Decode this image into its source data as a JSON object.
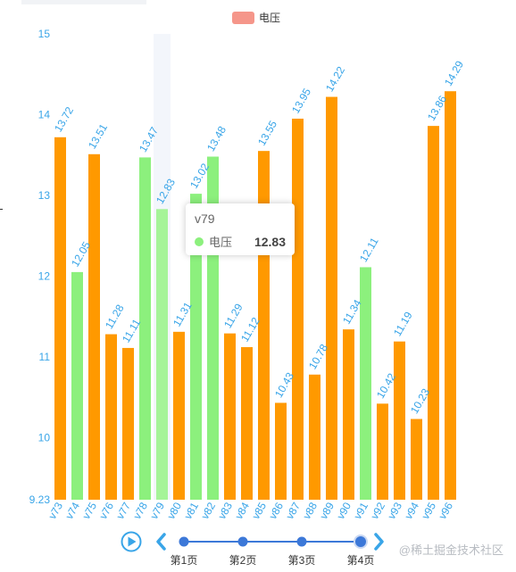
{
  "chart_data": {
    "type": "bar",
    "title": "",
    "legend": {
      "position": "top-center",
      "entries": [
        {
          "name": "电压",
          "color": "#f5968a"
        }
      ]
    },
    "yaxis": {
      "min": 9.23,
      "max": 15,
      "ticks": [
        "15",
        "14",
        "13",
        "12",
        "11",
        "10",
        "9.23"
      ]
    },
    "categories": [
      "v73",
      "v74",
      "v75",
      "v76",
      "v77",
      "v78",
      "v79",
      "v80",
      "v81",
      "v82",
      "v83",
      "v84",
      "v85",
      "v86",
      "v87",
      "v88",
      "v89",
      "v90",
      "v91",
      "v92",
      "v93",
      "v94",
      "v95",
      "v96"
    ],
    "series": [
      {
        "name": "电压",
        "values": [
          13.72,
          12.05,
          13.51,
          11.28,
          11.11,
          13.47,
          12.83,
          11.31,
          13.02,
          13.48,
          11.29,
          11.12,
          13.55,
          10.43,
          13.95,
          10.78,
          14.22,
          11.34,
          12.11,
          10.42,
          11.19,
          10.23,
          13.86,
          14.29
        ],
        "labels": [
          "13.72",
          "12.05",
          "13.51",
          "11.28",
          "11.11",
          "13.47",
          "12.83",
          "11.31",
          "13.02",
          "13.48",
          "11.29",
          "11.12",
          "13.55",
          "10.43",
          "13.95",
          "10.78",
          "14.22",
          "11.34",
          "12.11",
          "10.42",
          "11.19",
          "10.23",
          "13.86",
          "14.29"
        ],
        "colors": [
          "#ff9900",
          "#8cf07d",
          "#ff9900",
          "#ff9900",
          "#ff9900",
          "#8cf07d",
          "#a5f498",
          "#ff9900",
          "#8cf07d",
          "#8cf07d",
          "#ff9900",
          "#ff9900",
          "#ff9900",
          "#ff9900",
          "#ff9900",
          "#ff9900",
          "#ff9900",
          "#ff9900",
          "#8cf07d",
          "#ff9900",
          "#ff9900",
          "#ff9900",
          "#ff9900",
          "#ff9900"
        ]
      }
    ],
    "highlighted_category": "v79",
    "tooltip": {
      "title": "v79",
      "series_name": "电压",
      "value": "12.83"
    }
  },
  "timeline": {
    "points": [
      "第1页",
      "第2页",
      "第3页",
      "第4页"
    ],
    "current_index": 3,
    "color": "#3c78d8",
    "play_color": "#39a5e8"
  },
  "watermark": "@稀土掘金技术社区"
}
